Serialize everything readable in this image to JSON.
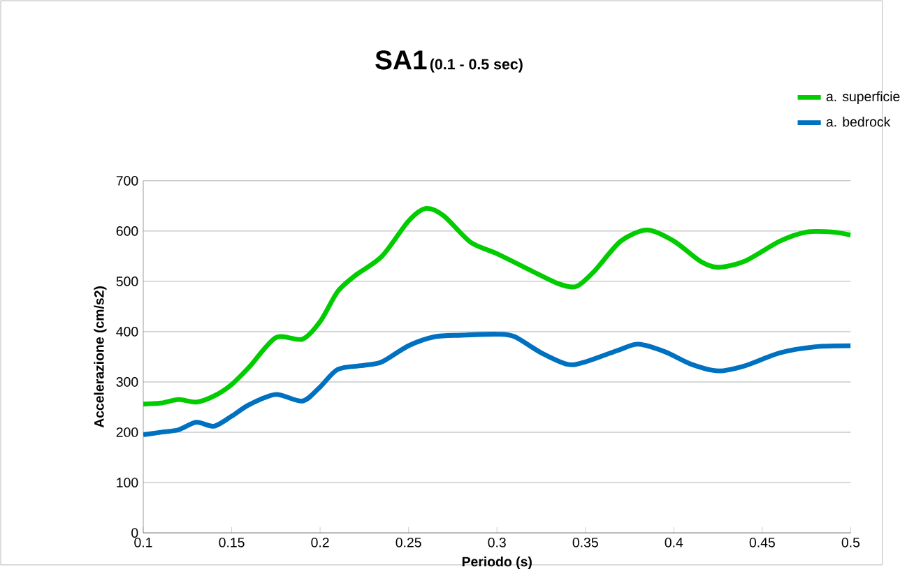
{
  "chart_data": {
    "type": "line",
    "title": "SA1",
    "subtitle": "(0.1 - 0.5 sec)",
    "xlabel": "Periodo (s)",
    "ylabel": "Accelerazione (cm/s2)",
    "xlim": [
      0.1,
      0.5
    ],
    "xticks": [
      0.1,
      0.15,
      0.2,
      0.25,
      0.3,
      0.35,
      0.4,
      0.45,
      0.5
    ],
    "ylim": [
      0,
      700
    ],
    "yticks": [
      0,
      100,
      200,
      300,
      400,
      500,
      600,
      700
    ],
    "grid": "y",
    "legend": "top right",
    "marker": "none",
    "line_style": "solid",
    "series": [
      {
        "name": "a. superficie",
        "color": "#00cc00",
        "x": [
          0.1,
          0.11,
          0.12,
          0.13,
          0.14,
          0.15,
          0.16,
          0.175,
          0.19,
          0.2,
          0.21,
          0.22,
          0.235,
          0.25,
          0.26,
          0.27,
          0.285,
          0.3,
          0.32,
          0.335,
          0.345,
          0.355,
          0.37,
          0.385,
          0.4,
          0.415,
          0.425,
          0.44,
          0.46,
          0.475,
          0.49,
          0.5
        ],
        "values": [
          256,
          258,
          265,
          260,
          272,
          295,
          330,
          388,
          385,
          420,
          480,
          512,
          550,
          620,
          645,
          630,
          578,
          555,
          520,
          495,
          490,
          520,
          580,
          602,
          580,
          540,
          528,
          540,
          580,
          598,
          598,
          592
        ]
      },
      {
        "name": "a. bedrock",
        "color": "#0070c0",
        "x": [
          0.1,
          0.11,
          0.12,
          0.13,
          0.14,
          0.15,
          0.16,
          0.175,
          0.19,
          0.2,
          0.21,
          0.225,
          0.235,
          0.25,
          0.265,
          0.28,
          0.3,
          0.31,
          0.325,
          0.34,
          0.35,
          0.37,
          0.38,
          0.395,
          0.41,
          0.425,
          0.44,
          0.46,
          0.48,
          0.5
        ],
        "values": [
          195,
          200,
          205,
          220,
          212,
          232,
          255,
          275,
          262,
          290,
          325,
          333,
          340,
          372,
          390,
          393,
          395,
          390,
          358,
          335,
          340,
          365,
          375,
          360,
          335,
          322,
          332,
          358,
          370,
          372
        ]
      }
    ]
  }
}
